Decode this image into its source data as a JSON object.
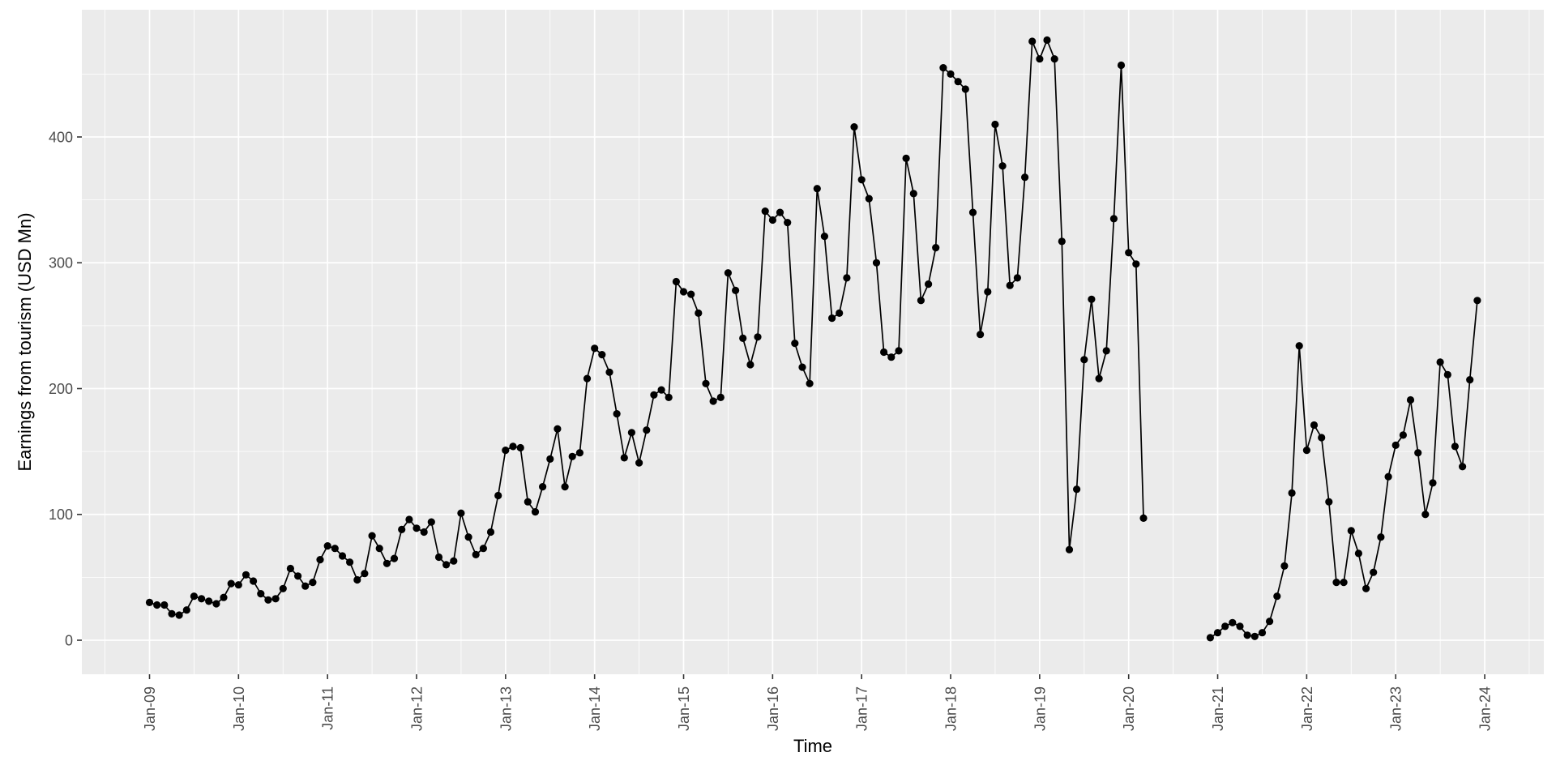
{
  "chart_data": {
    "type": "line",
    "title": "",
    "xlabel": "Time",
    "ylabel": "Earnings from tourism (USD Mn)",
    "legend": "none",
    "grid": "on",
    "x_tick_rotation": 90,
    "ylim": [
      -27,
      502
    ],
    "y_ticks": [
      {
        "label": "0",
        "value": 0
      },
      {
        "label": "100",
        "value": 100
      },
      {
        "label": "200",
        "value": 200
      },
      {
        "label": "300",
        "value": 300
      },
      {
        "label": "400",
        "value": 400
      }
    ],
    "y_minor_ticks": [
      50,
      150,
      250,
      350,
      450
    ],
    "x_ticks": [
      {
        "label": "Jan-09",
        "month_index": 0
      },
      {
        "label": "Jan-10",
        "month_index": 12
      },
      {
        "label": "Jan-11",
        "month_index": 24
      },
      {
        "label": "Jan-12",
        "month_index": 36
      },
      {
        "label": "Jan-13",
        "month_index": 48
      },
      {
        "label": "Jan-14",
        "month_index": 60
      },
      {
        "label": "Jan-15",
        "month_index": 72
      },
      {
        "label": "Jan-16",
        "month_index": 84
      },
      {
        "label": "Jan-17",
        "month_index": 96
      },
      {
        "label": "Jan-18",
        "month_index": 108
      },
      {
        "label": "Jan-19",
        "month_index": 120
      },
      {
        "label": "Jan-20",
        "month_index": 132
      },
      {
        "label": "Jan-21",
        "month_index": 144
      },
      {
        "label": "Jan-22",
        "month_index": 156
      },
      {
        "label": "Jan-23",
        "month_index": 168
      },
      {
        "label": "Jan-24",
        "month_index": 180
      }
    ],
    "x_minor_month_indices_step": {
      "start": -6,
      "end": 186,
      "step": 12
    },
    "series": [
      {
        "name": "Earnings from tourism",
        "point_shape": "filled-circle",
        "segments": [
          {
            "start_label": "Jan-09",
            "start_month_index": 0,
            "values": [
              30,
              28,
              28,
              21,
              20,
              24,
              35,
              33,
              31,
              29,
              34,
              45,
              44,
              52,
              47,
              37,
              32,
              33,
              41,
              57,
              51,
              43,
              46,
              64,
              75,
              73,
              67,
              62,
              48,
              53,
              83,
              73,
              61,
              65,
              88,
              96,
              89,
              86,
              94,
              66,
              60,
              63,
              101,
              82,
              68,
              73,
              86,
              115,
              151,
              154,
              153,
              110,
              102,
              122,
              144,
              168,
              122,
              146,
              149,
              208,
              232,
              227,
              213,
              180,
              145,
              165,
              141,
              167,
              195,
              199,
              193,
              285,
              277,
              275,
              260,
              204,
              190,
              193,
              292,
              278,
              240,
              219,
              241,
              341,
              334,
              340,
              332,
              236,
              217,
              204,
              359,
              321,
              256,
              260,
              288,
              408,
              366,
              351,
              300,
              229,
              225,
              230,
              383,
              355,
              270,
              283,
              312,
              455,
              450,
              444,
              438,
              340,
              243,
              277,
              410,
              377,
              282,
              288,
              368,
              476,
              462,
              477,
              462,
              317,
              72,
              120,
              223,
              271,
              208,
              230,
              335,
              457,
              308,
              299,
              97
            ]
          },
          {
            "start_label": "Dec-20",
            "start_month_index": 143,
            "values": [
              2,
              6,
              11,
              14,
              11,
              4,
              3,
              6,
              15,
              35,
              59,
              117,
              234,
              151,
              171,
              161,
              110,
              46,
              46,
              87,
              69,
              41,
              54,
              82,
              130,
              155,
              163,
              191,
              149,
              100,
              125,
              221,
              211,
              154,
              138,
              207,
              270
            ]
          }
        ]
      }
    ],
    "colors": {
      "panel_background": "#EBEBEB",
      "gridline_major": "#FFFFFF",
      "gridline_minor": "#FFFFFF",
      "line_and_points": "#000000",
      "tick_mark": "#333333",
      "tick_label_text": "#4D4D4D",
      "axis_title_text": "#000000",
      "outer_background": "#FFFFFF"
    }
  }
}
